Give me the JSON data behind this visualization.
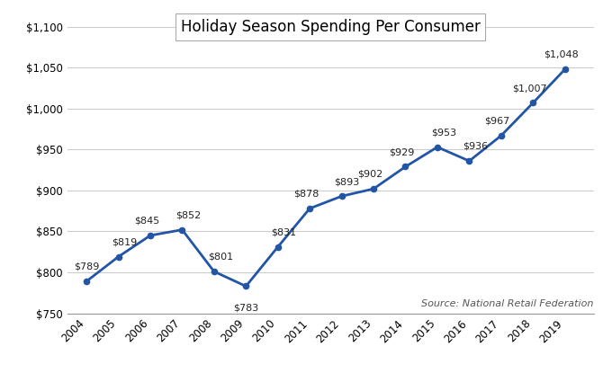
{
  "title": "Holiday Season Spending Per Consumer",
  "years": [
    2004,
    2005,
    2006,
    2007,
    2008,
    2009,
    2010,
    2011,
    2012,
    2013,
    2014,
    2015,
    2016,
    2017,
    2018,
    2019
  ],
  "values": [
    789,
    819,
    845,
    852,
    801,
    783,
    831,
    878,
    893,
    902,
    929,
    953,
    936,
    967,
    1007,
    1048
  ],
  "labels": [
    "$789",
    "$819",
    "$845",
    "$852",
    "$801",
    "$783",
    "$831",
    "$878",
    "$893",
    "$902",
    "$929",
    "$953",
    "$936",
    "$967",
    "$1,007",
    "$1,048"
  ],
  "label_offsets_x": [
    0,
    5,
    -3,
    5,
    5,
    0,
    5,
    -3,
    4,
    -3,
    -3,
    5,
    5,
    -3,
    -3,
    -3
  ],
  "label_offsets_y": [
    8,
    8,
    8,
    8,
    8,
    -14,
    8,
    8,
    8,
    8,
    8,
    8,
    8,
    8,
    8,
    8
  ],
  "line_color": "#2255A4",
  "marker_color": "#2255A4",
  "ylim": [
    750,
    1100
  ],
  "yticks": [
    750,
    800,
    850,
    900,
    950,
    1000,
    1050,
    1100
  ],
  "ytick_labels": [
    "$750",
    "$800",
    "$850",
    "$900",
    "$950",
    "$1,000",
    "$1,050",
    "$1,100"
  ],
  "background_color": "#FFFFFF",
  "grid_color": "#CCCCCC",
  "source_text": "Source: National Retail Federation",
  "title_fontsize": 12,
  "label_fontsize": 8,
  "tick_fontsize": 8.5,
  "source_fontsize": 8
}
